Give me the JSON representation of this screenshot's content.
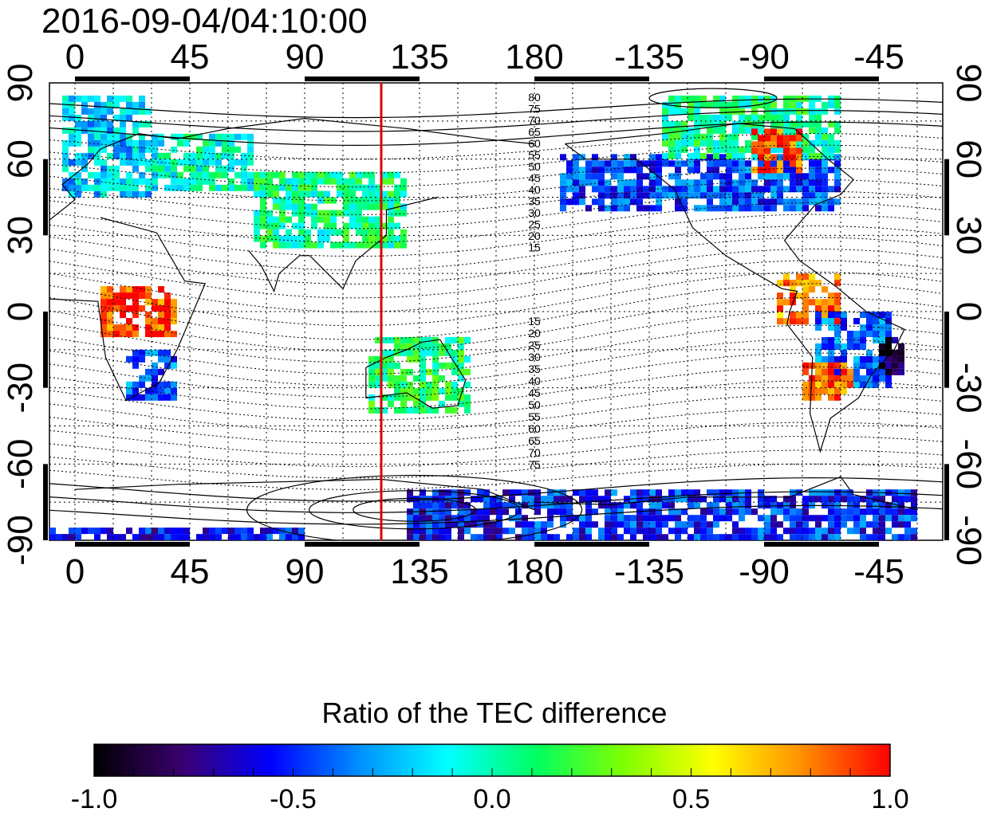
{
  "figure": {
    "timestamp": "2016-09-04/04:10:00",
    "colorbar_title": "Ratio of the TEC difference",
    "colorbar_ticks": [
      "-1.0",
      "-0.5",
      "0.0",
      "0.5",
      "1.0"
    ],
    "colormap": [
      "#000000",
      "#3a0070",
      "#0000ff",
      "#0090ff",
      "#00ffff",
      "#00ff60",
      "#80ff00",
      "#ffff00",
      "#ff9000",
      "#ff0000"
    ],
    "marker_line_color": "#dd0000"
  },
  "chart_data": {
    "type": "heatmap",
    "title": "2016-09-04/04:10:00",
    "xlabel": "",
    "ylabel": "",
    "x_ticks": [
      "0",
      "45",
      "90",
      "135",
      "180",
      "-135",
      "-90",
      "-45"
    ],
    "y_ticks": [
      "90",
      "60",
      "30",
      "0",
      "-30",
      "-60",
      "-90"
    ],
    "x_range": [
      -10,
      340
    ],
    "y_range": [
      -90,
      90
    ],
    "value_range": [
      -1.0,
      1.0
    ],
    "marker_longitude": 120,
    "grid": true,
    "contour_labels_north": [
      "80",
      "75",
      "70",
      "65",
      "60",
      "55",
      "50",
      "45",
      "40",
      "35",
      "30",
      "25",
      "20",
      "15"
    ],
    "contour_labels_south": [
      "15",
      "20",
      "25",
      "30",
      "35",
      "40",
      "45",
      "50",
      "55",
      "60",
      "65",
      "70",
      "75"
    ],
    "regions": [
      {
        "lon": [
          -5,
          30
        ],
        "lat": [
          45,
          85
        ],
        "value": -0.2
      },
      {
        "lon": [
          30,
          70
        ],
        "lat": [
          48,
          70
        ],
        "value": -0.05
      },
      {
        "lon": [
          70,
          130
        ],
        "lat": [
          25,
          55
        ],
        "value": 0.05
      },
      {
        "lon": [
          10,
          40
        ],
        "lat": [
          -10,
          10
        ],
        "value": 0.9
      },
      {
        "lon": [
          20,
          40
        ],
        "lat": [
          -35,
          -15
        ],
        "value": -0.4
      },
      {
        "lon": [
          115,
          155
        ],
        "lat": [
          -40,
          -10
        ],
        "value": 0.1
      },
      {
        "lon": [
          130,
          180
        ],
        "lat": [
          -90,
          -70
        ],
        "value": -0.55
      },
      {
        "lon": [
          -170,
          -60
        ],
        "lat": [
          40,
          62
        ],
        "value": -0.45
      },
      {
        "lon": [
          -130,
          -60
        ],
        "lat": [
          62,
          85
        ],
        "value": 0.05
      },
      {
        "lon": [
          -95,
          -75
        ],
        "lat": [
          55,
          72
        ],
        "value": 0.9
      },
      {
        "lon": [
          -85,
          -60
        ],
        "lat": [
          -5,
          15
        ],
        "value": 0.8
      },
      {
        "lon": [
          -70,
          -40
        ],
        "lat": [
          -30,
          0
        ],
        "value": -0.4
      },
      {
        "lon": [
          -45,
          -35
        ],
        "lat": [
          -25,
          -10
        ],
        "value": -0.9
      },
      {
        "lon": [
          -75,
          -55
        ],
        "lat": [
          -35,
          -20
        ],
        "value": 0.85
      },
      {
        "lon": [
          -180,
          -30
        ],
        "lat": [
          -90,
          -70
        ],
        "value": -0.5
      },
      {
        "lon": [
          -10,
          90
        ],
        "lat": [
          -90,
          -85
        ],
        "value": -0.55
      }
    ]
  }
}
